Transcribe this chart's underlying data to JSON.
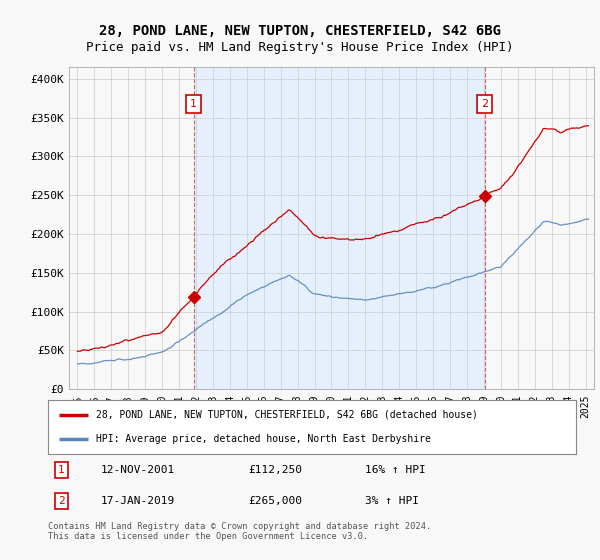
{
  "title": "28, POND LANE, NEW TUPTON, CHESTERFIELD, S42 6BG",
  "subtitle": "Price paid vs. HM Land Registry's House Price Index (HPI)",
  "title_fontsize": 10,
  "subtitle_fontsize": 9,
  "ylabel_ticks": [
    "£0",
    "£50K",
    "£100K",
    "£150K",
    "£200K",
    "£250K",
    "£300K",
    "£350K",
    "£400K"
  ],
  "ytick_values": [
    0,
    50000,
    100000,
    150000,
    200000,
    250000,
    300000,
    350000,
    400000
  ],
  "ylim": [
    0,
    415000
  ],
  "xlim_start": 1994.5,
  "xlim_end": 2025.5,
  "purchase1_date": 2001.87,
  "purchase1_price": 112250,
  "purchase2_date": 2019.04,
  "purchase2_price": 265000,
  "line_color_property": "#cc0000",
  "line_color_hpi": "#5588bb",
  "vline_color": "#cc4444",
  "shade_color": "#ddeeff",
  "grid_color": "#cccccc",
  "bg_color": "#f8f8f8",
  "legend_label_property": "28, POND LANE, NEW TUPTON, CHESTERFIELD, S42 6BG (detached house)",
  "legend_label_hpi": "HPI: Average price, detached house, North East Derbyshire",
  "table_row1": [
    "1",
    "12-NOV-2001",
    "£112,250",
    "16% ↑ HPI"
  ],
  "table_row2": [
    "2",
    "17-JAN-2019",
    "£265,000",
    "3% ↑ HPI"
  ],
  "footnote": "Contains HM Land Registry data © Crown copyright and database right 2024.\nThis data is licensed under the Open Government Licence v3.0."
}
